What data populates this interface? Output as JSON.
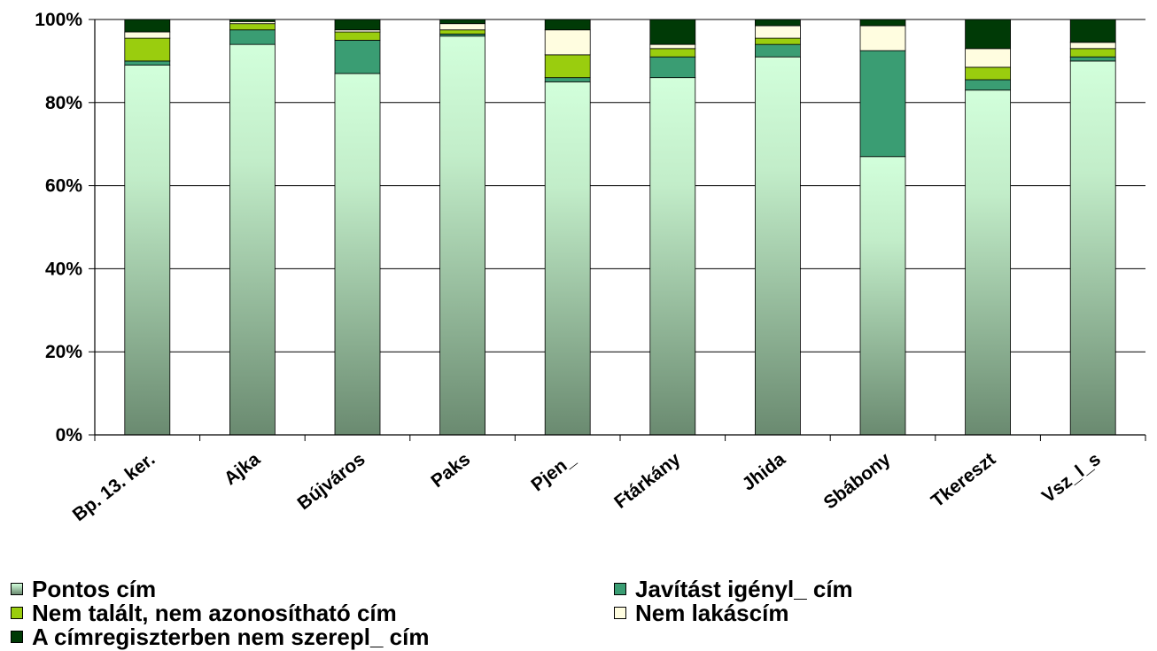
{
  "chart_data": {
    "type": "bar",
    "stacked": true,
    "percent": true,
    "categories": [
      "Bp. 13. ker.",
      "Ajka",
      "Bújváros",
      "Paks",
      "Pjen_",
      "Ftárkány",
      "Jhida",
      "Sbábony",
      "Tkereszt",
      "Vsz_l_s"
    ],
    "ylim": [
      0,
      100
    ],
    "yticks": [
      "0%",
      "20%",
      "40%",
      "60%",
      "80%",
      "100%"
    ],
    "grid": true,
    "legend_position": "bottom",
    "series": [
      {
        "name": "Pontos cím",
        "color": "#cfffd8",
        "values": [
          89,
          94,
          87,
          96,
          85,
          86,
          91,
          67,
          83,
          90
        ]
      },
      {
        "name": "Javítást igényl_ cím",
        "color": "#3a9d73",
        "values": [
          1,
          3.5,
          8,
          0.5,
          1,
          5,
          3,
          25.5,
          2.5,
          1
        ]
      },
      {
        "name": "Nem talált, nem azonosítható cím",
        "color": "#9acd0e",
        "values": [
          5.5,
          1.5,
          2,
          1,
          5.5,
          2,
          1.5,
          0,
          3,
          2
        ]
      },
      {
        "name": "Nem lakáscím",
        "color": "#fffde0",
        "values": [
          1.5,
          0.5,
          0.5,
          1.5,
          6,
          1,
          3,
          6,
          4.5,
          1.5
        ]
      },
      {
        "name": "A címregiszterben nem szerepl_ cím",
        "color": "#003a06",
        "values": [
          3,
          0.5,
          2.5,
          1,
          2.5,
          6,
          1.5,
          1.5,
          7,
          5.5
        ]
      }
    ]
  }
}
